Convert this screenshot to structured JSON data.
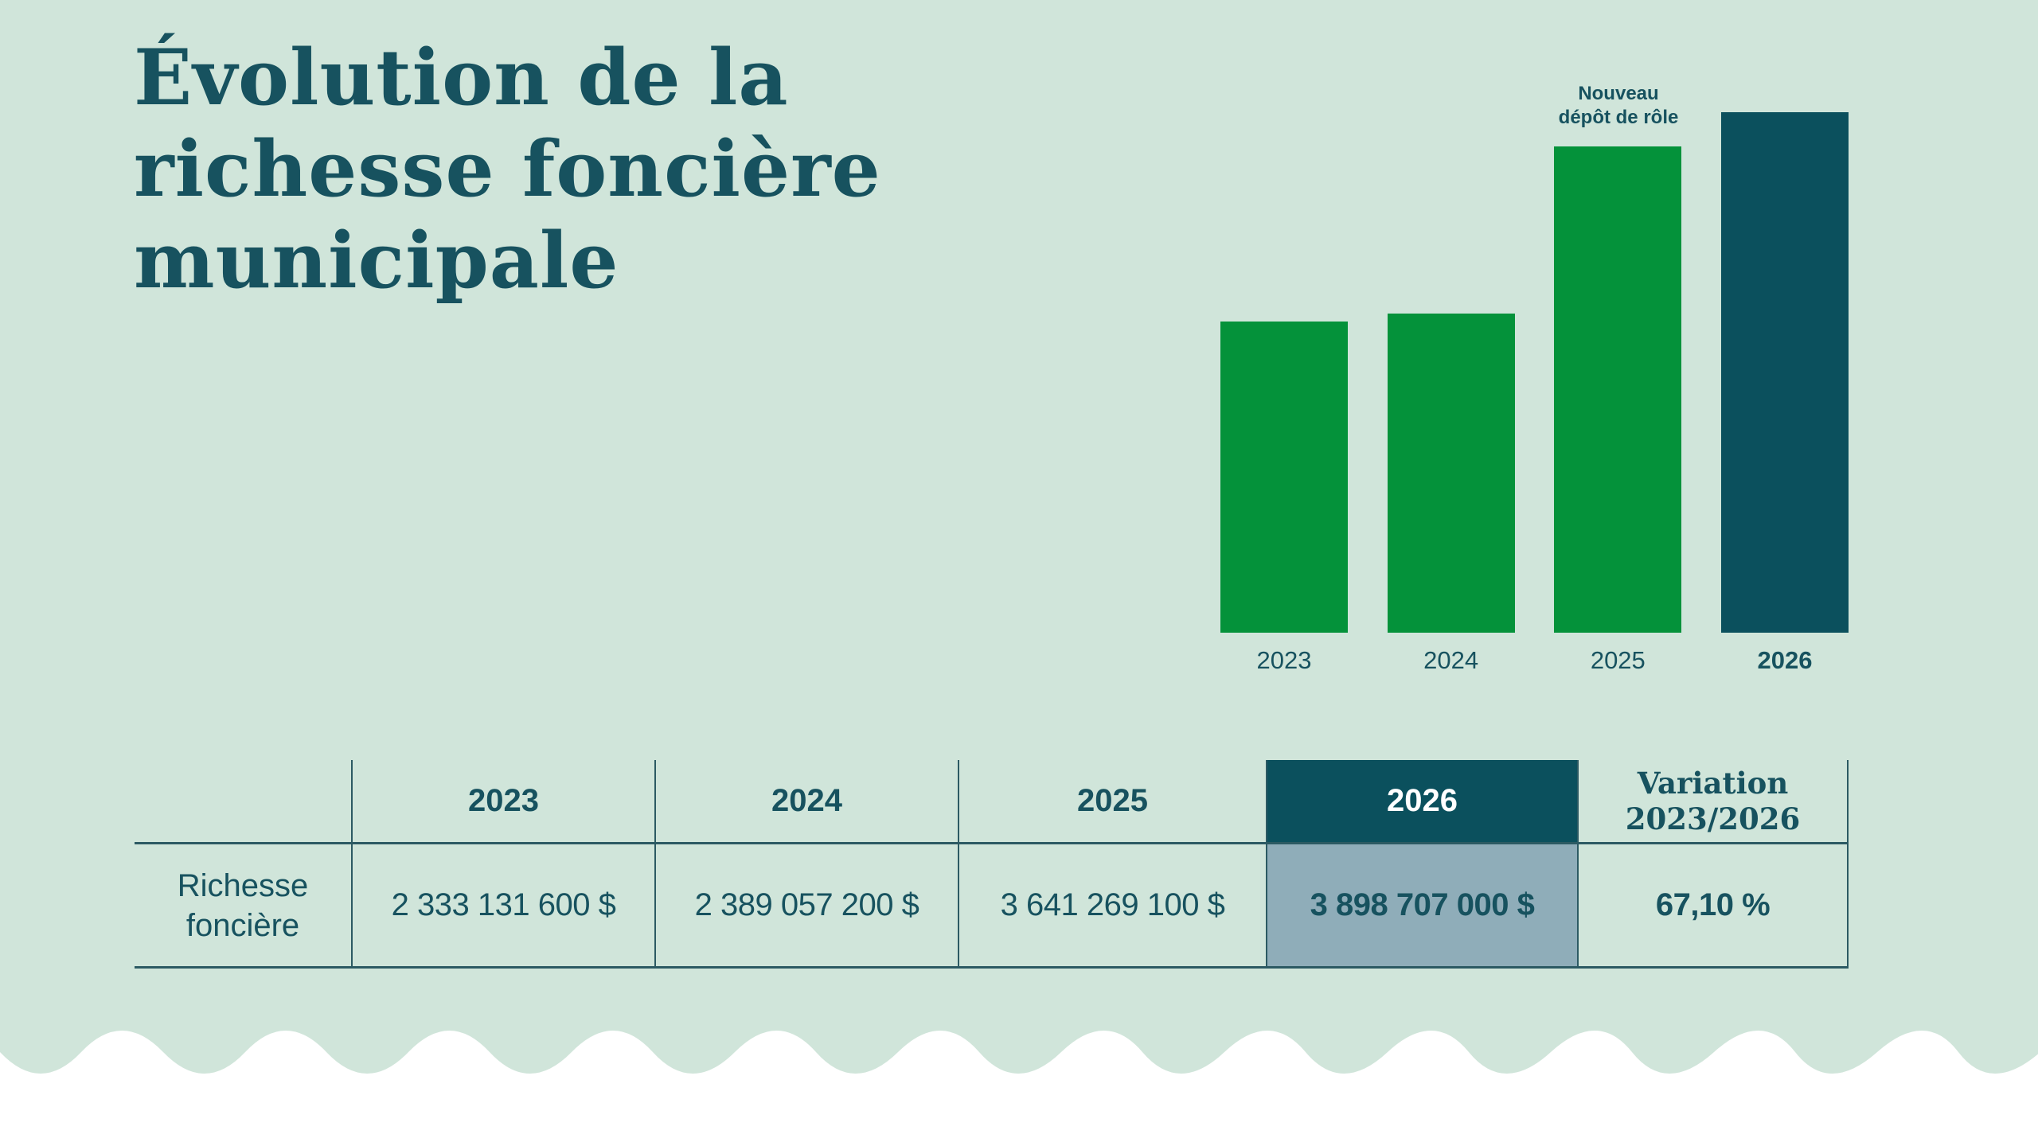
{
  "page": {
    "title_line1": "Évolution de la",
    "title_line2": "richesse foncière",
    "title_line3": "municipale"
  },
  "chart_data": {
    "type": "bar",
    "title": "",
    "xlabel": "",
    "ylabel": "",
    "categories": [
      "2023",
      "2024",
      "2025",
      "2026"
    ],
    "values": [
      2333131600,
      2389057200,
      3641269100,
      3898707000
    ],
    "value_unit": "$",
    "bar_colors": [
      "#04923a",
      "#04923a",
      "#04923a",
      "#0b505d"
    ],
    "highlight_category": "2026",
    "annotation": {
      "line1": "Nouveau",
      "line2": "dépôt de rôle",
      "above_category": "2025"
    },
    "ylim": [
      0,
      3898707000
    ],
    "grid": false,
    "legend": false
  },
  "table": {
    "columns": [
      "",
      "2023",
      "2024",
      "2025",
      "2026",
      "Variation 2023/2026"
    ],
    "variation_header_line1": "Variation",
    "variation_header_line2": "2023/2026",
    "highlight_column": "2026",
    "rows": [
      {
        "label": "Richesse foncière",
        "values": [
          "2 333 131 600 $",
          "2 389 057 200 $",
          "3 641 269 100 $",
          "3 898 707 000 $",
          "67,10 %"
        ]
      }
    ]
  },
  "colors": {
    "background": "#d0e5da",
    "accent_green": "#04923a",
    "accent_teal_dark": "#0b505d",
    "text_teal": "#17525f",
    "highlight_cell_bg": "#8fadb9",
    "table_line": "#2c5a63",
    "wave_white": "#ffffff"
  }
}
